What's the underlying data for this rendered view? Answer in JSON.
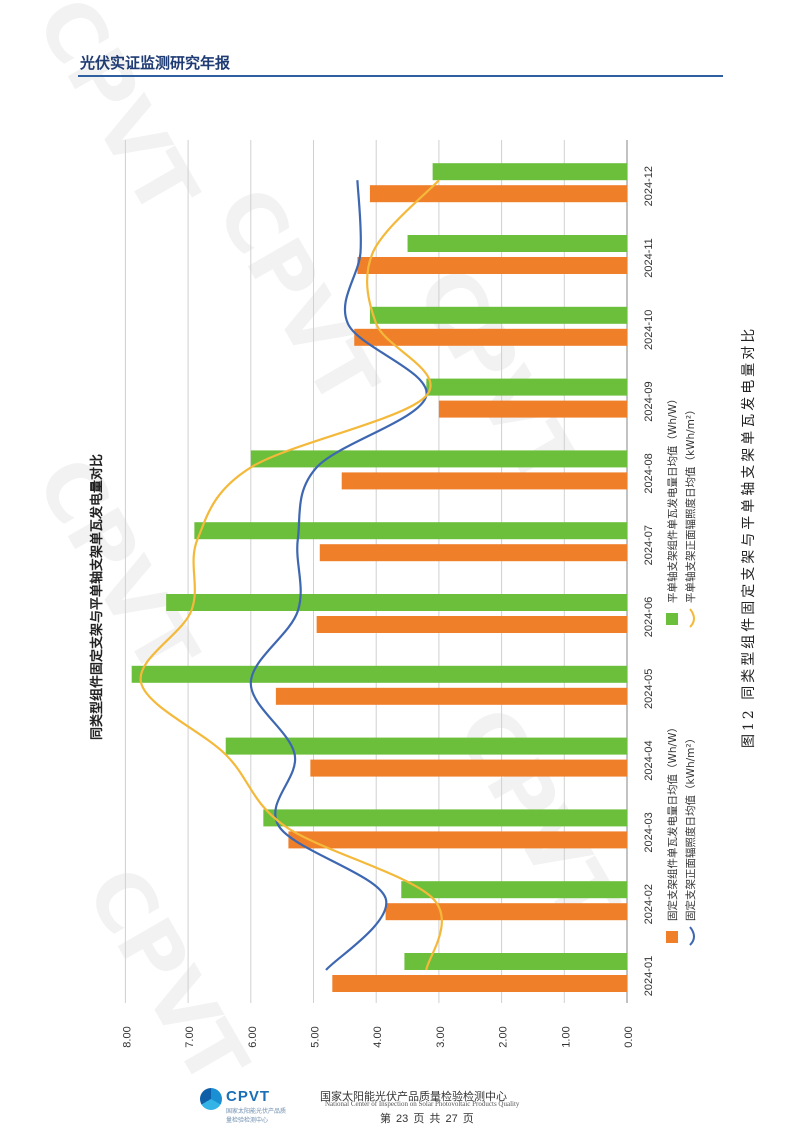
{
  "header": {
    "title": "光伏实证监测研究年报"
  },
  "caption": "图12 同类型组件固定支架与平单轴支架单瓦发电量对比",
  "watermark": "CPVT",
  "colors": {
    "fixed_bar": "#f07f2a",
    "tracker_bar": "#6bbf3a",
    "fixed_line": "#3e67b1",
    "tracker_line": "#f4b93a",
    "grid": "#d0d0d0"
  },
  "chart_data": {
    "type": "bar",
    "title": "同类型组件固定支架与平单轴支架单瓦发电量对比",
    "categories": [
      "2024-01",
      "2024-02",
      "2024-03",
      "2024-04",
      "2024-05",
      "2024-06",
      "2024-07",
      "2024-08",
      "2024-09",
      "2024-10",
      "2024-11",
      "2024-12"
    ],
    "series": [
      {
        "name": "固定支架组件单瓦发电量日均值（Wh/W）",
        "kind": "bar",
        "color": "#f07f2a",
        "values": [
          4.7,
          3.85,
          5.4,
          5.05,
          5.6,
          4.95,
          4.9,
          4.55,
          3.0,
          4.35,
          4.3,
          4.1
        ]
      },
      {
        "name": "平单轴支架组件单瓦发电量日均值（Wh/W）",
        "kind": "bar",
        "color": "#6bbf3a",
        "values": [
          3.55,
          3.6,
          5.8,
          6.4,
          7.9,
          7.35,
          6.9,
          6.0,
          3.2,
          4.1,
          3.5,
          3.1
        ]
      },
      {
        "name": "固定支架正面辐照度日均值（kWh/m²）",
        "kind": "line",
        "color": "#3e67b1",
        "values": [
          4.8,
          3.85,
          5.55,
          5.3,
          6.0,
          5.25,
          5.25,
          4.95,
          3.2,
          4.45,
          4.25,
          4.3
        ]
      },
      {
        "name": "平单轴支架正面辐照度日均值（kWh/m²）",
        "kind": "line",
        "color": "#f4b93a",
        "values": [
          3.2,
          3.1,
          5.45,
          6.4,
          7.75,
          6.95,
          6.85,
          6.0,
          3.2,
          4.0,
          4.05,
          3.0
        ]
      }
    ],
    "value_axis": {
      "min": 0,
      "max": 8,
      "step": 1,
      "tick_labels": [
        "0.00",
        "1.00",
        "2.00",
        "3.00",
        "4.00",
        "5.00",
        "6.00",
        "7.00",
        "8.00"
      ]
    },
    "orientation": "rotated page (values grow upward on the printed page)",
    "grid": true,
    "legend": "bottom"
  },
  "footer": {
    "logo_text": "CPVT",
    "logo_sub": "国家太阳能光伏产品质量检验检测中心",
    "org_cn": "国家太阳能光伏产品质量检验检测中心",
    "org_en": "National Center of Inspection on Solar Photovoltaic Products Quality",
    "page": "第 23 页 共 27 页"
  }
}
